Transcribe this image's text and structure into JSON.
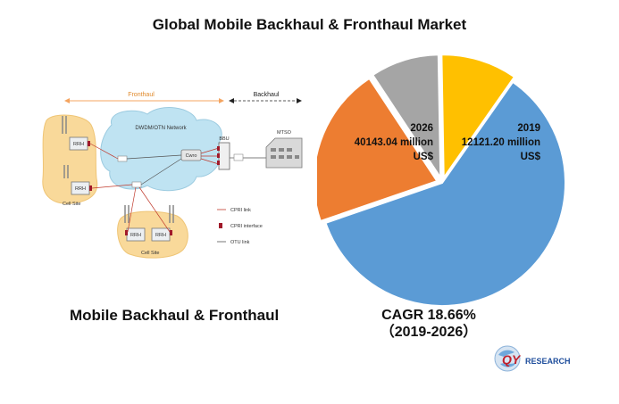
{
  "title": "Global Mobile Backhaul & Fronthaul Market",
  "diagram": {
    "caption": "Mobile Backhaul & Fronthaul",
    "fronthaul_label": "Fronthaul",
    "backhaul_label": "Backhaul",
    "network_label": "DWDM/OTN Network",
    "rrh_label": "RRH",
    "bbu_label": "BBU",
    "mtso_label": "MTSO",
    "cell_site_label": "Cell Site",
    "cran_label": "Cwro",
    "legend": {
      "cpri_link": "CPRI link",
      "cpri_interface": "CPRI interface",
      "otu_link": "OTU link"
    }
  },
  "market": {
    "year_2026": "2026",
    "value_2026": "40143.04 million",
    "unit_2026": "US$",
    "year_2019": "2019",
    "value_2019": "12121.20 million",
    "unit_2019": "US$",
    "cagr": "CAGR 18.66%",
    "cagr_period": "（2019-2026）"
  },
  "chart_data": {
    "type": "pie",
    "note_colors": [
      "#5B9BD5",
      "#ED7D31",
      "#A5A5A5",
      "#FFC000"
    ],
    "slices": [
      0.6,
      0.21,
      0.09,
      0.1
    ]
  },
  "logo": {
    "text_q": "QY",
    "text_rest": "RESEARCH"
  }
}
